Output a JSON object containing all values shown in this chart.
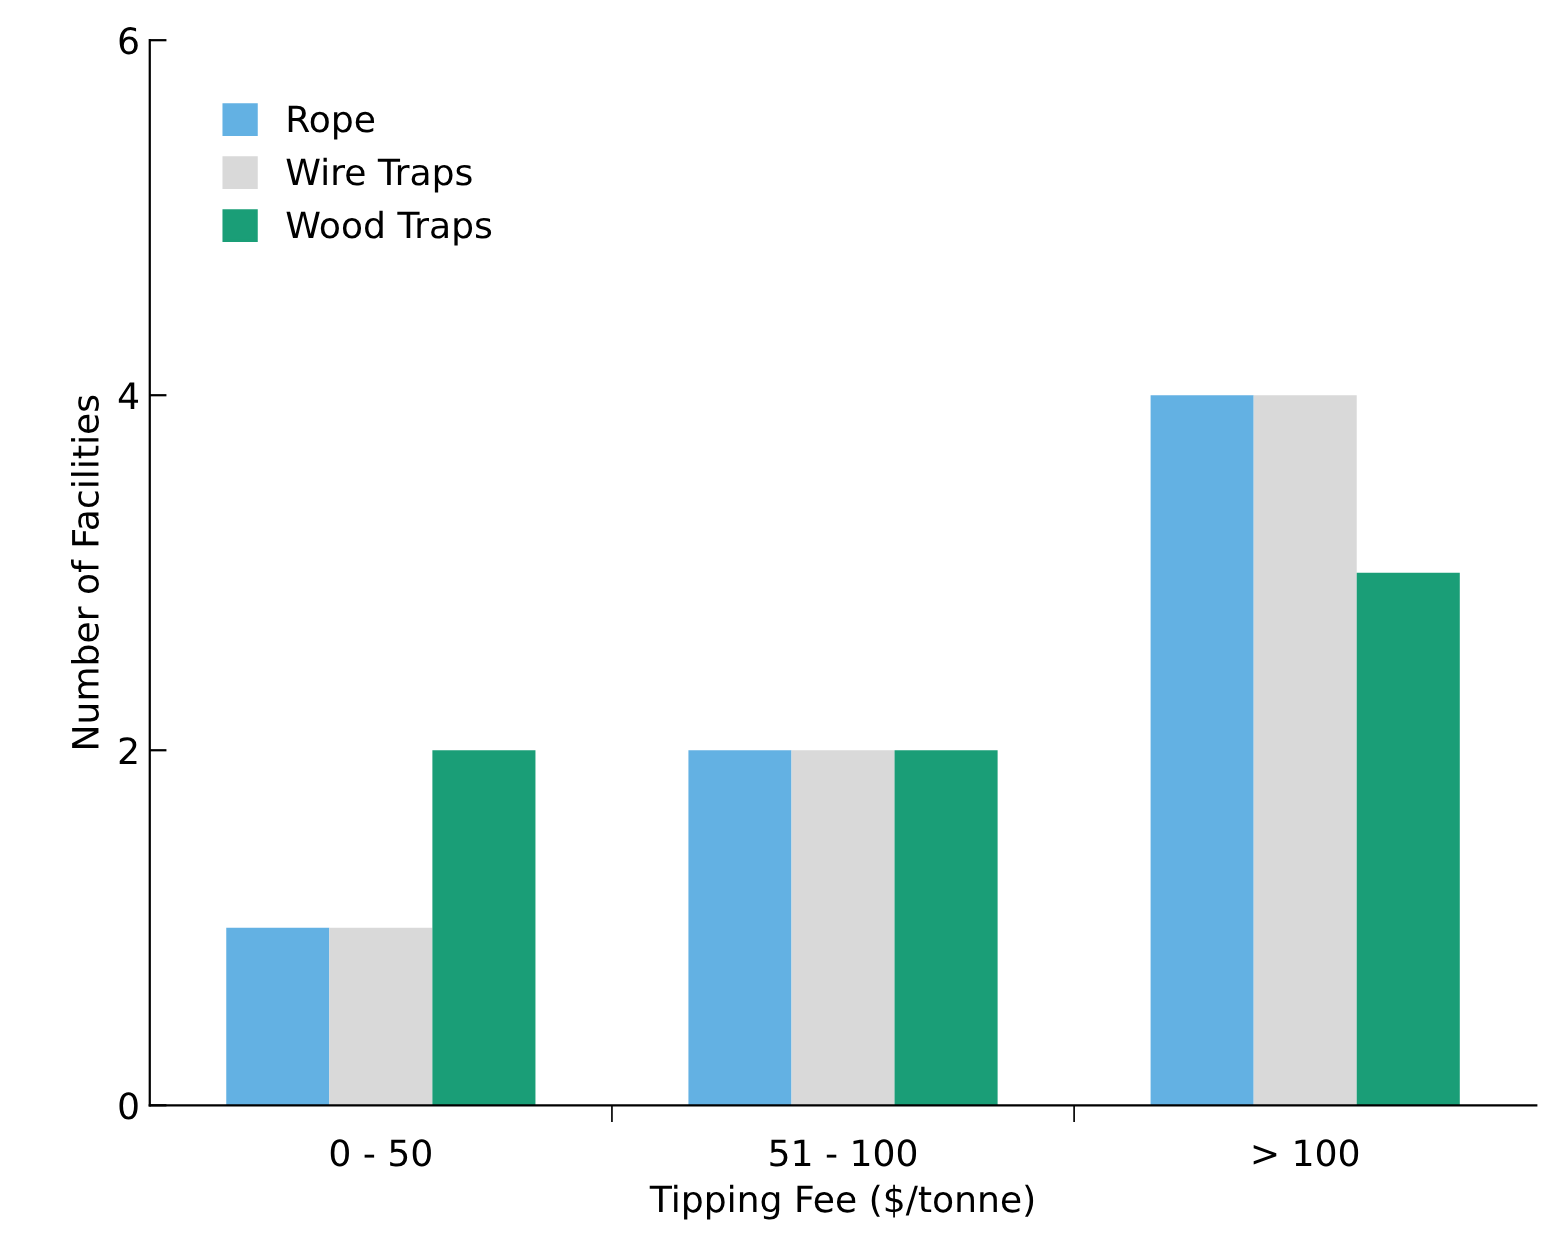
{
  "chart_data": {
    "type": "bar",
    "xlabel": "Tipping Fee ($/tonne)",
    "ylabel": "Number of Facilities",
    "categories": [
      "0 - 50",
      "51 - 100",
      "> 100"
    ],
    "series": [
      {
        "name": "Rope",
        "color": "#63b1e3",
        "values": [
          1,
          2,
          4
        ]
      },
      {
        "name": "Wire Traps",
        "color": "#d9d9d9",
        "values": [
          1,
          2,
          4
        ]
      },
      {
        "name": "Wood Traps",
        "color": "#1a9e77",
        "values": [
          2,
          2,
          3
        ]
      }
    ],
    "ylim": [
      0,
      6
    ],
    "yticks": [
      0,
      2,
      4,
      6
    ],
    "grid": false,
    "legend": "top left"
  }
}
